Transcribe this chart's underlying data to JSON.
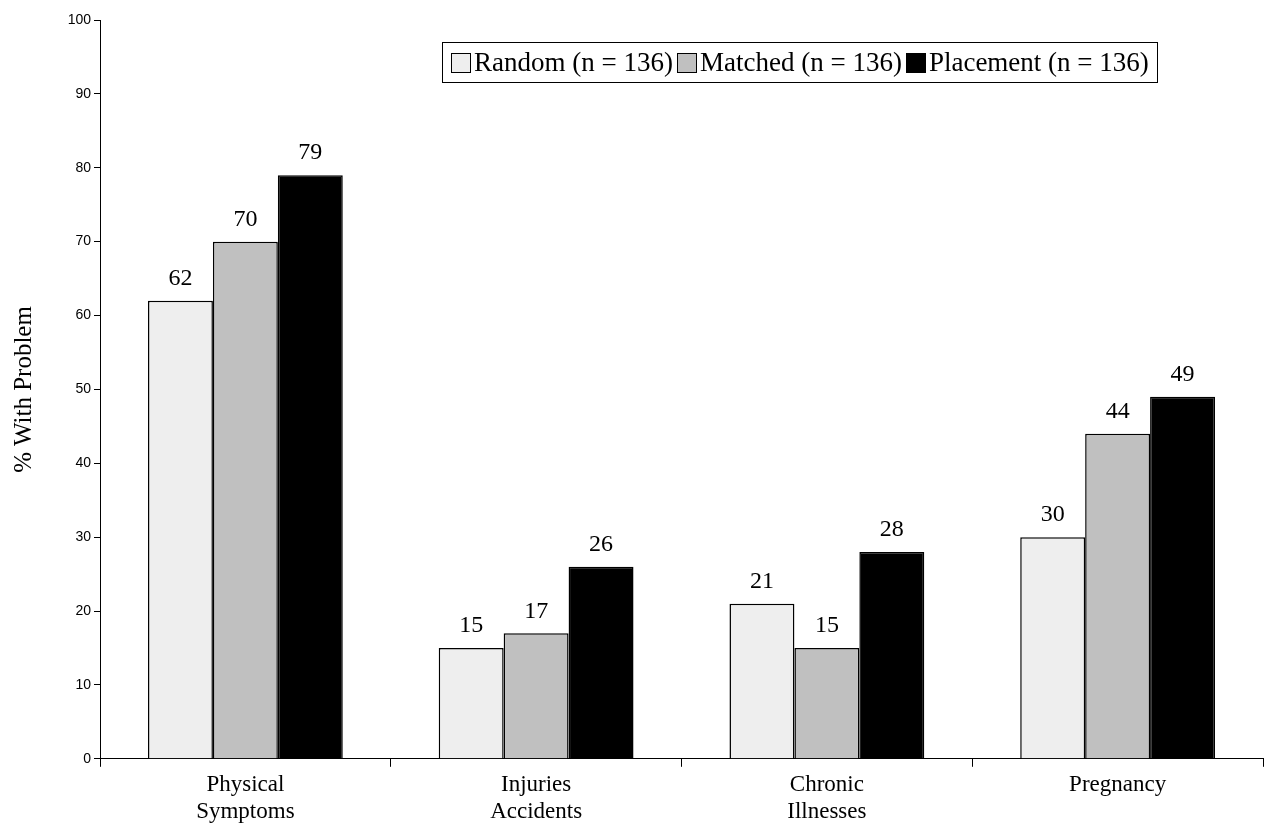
{
  "chart_data": {
    "type": "bar",
    "ylabel": "% With Problem",
    "categories": [
      "Physical Symptoms",
      "Injuries Accidents",
      "Chronic Illnesses",
      "Pregnancy"
    ],
    "series": [
      {
        "name": "Random (n = 136)",
        "color": "#eeeeee",
        "values": [
          62,
          15,
          21,
          30
        ]
      },
      {
        "name": "Matched (n = 136)",
        "color": "#c0c0c0",
        "values": [
          70,
          17,
          15,
          44
        ]
      },
      {
        "name": "Placement (n = 136)",
        "color": "#000000",
        "values": [
          79,
          26,
          28,
          49
        ]
      }
    ],
    "ylim": [
      0,
      100
    ],
    "yticks": [
      0,
      10,
      20,
      30,
      40,
      50,
      60,
      70,
      80,
      90,
      100
    ],
    "grid": false,
    "legend": "top right",
    "data_labels": true
  }
}
